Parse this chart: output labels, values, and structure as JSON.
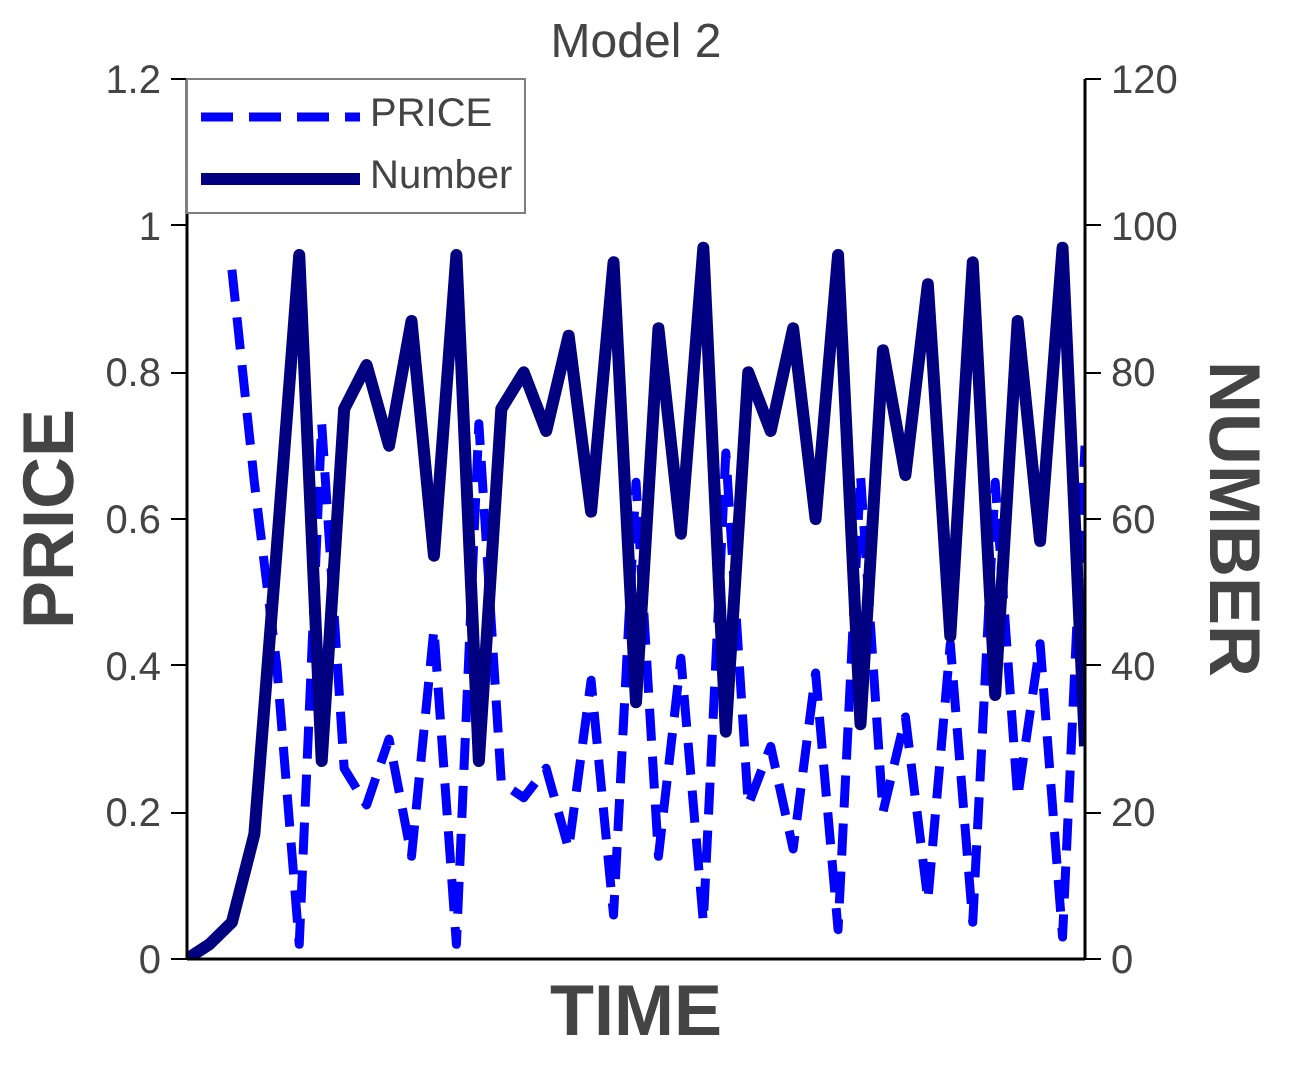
{
  "chart_data": {
    "type": "line",
    "title": "Model 2",
    "xlabel": "TIME",
    "ylabel": "PRICE",
    "y2label": "NUMBER",
    "categories": [
      null,
      null,
      null,
      null,
      null,
      null,
      null,
      null,
      null,
      null,
      null,
      null,
      null,
      null,
      null,
      null,
      null,
      null,
      null,
      null,
      null,
      null,
      null,
      null,
      null,
      null,
      null,
      null,
      null,
      null,
      null,
      null,
      null,
      null,
      null,
      null,
      null,
      null,
      null,
      null,
      null
    ],
    "series": [
      {
        "name": "PRICE",
        "color": "#0000ff",
        "line_style": "dashed",
        "values": [
          null,
          null,
          0.94,
          0.65,
          0.4,
          0.02,
          0.73,
          0.26,
          0.21,
          0.3,
          0.14,
          0.45,
          0.02,
          0.73,
          0.24,
          0.22,
          0.26,
          0.15,
          0.38,
          0.06,
          0.65,
          0.14,
          0.41,
          0.05,
          0.69,
          0.21,
          0.29,
          0.15,
          0.39,
          0.04,
          0.66,
          0.2,
          0.33,
          0.08,
          0.43,
          0.05,
          0.65,
          0.22,
          0.43,
          0.03,
          0.7
        ]
      },
      {
        "name": "Number",
        "color": "#000080",
        "line_style": "solid",
        "axis": "y2",
        "values": [
          0,
          2,
          5,
          17,
          56,
          96,
          27,
          75,
          81,
          70,
          87,
          55,
          96,
          27,
          75,
          80,
          72,
          85,
          61,
          95,
          35,
          86,
          58,
          97,
          31,
          80,
          72,
          86,
          60,
          96,
          32,
          83,
          66,
          92,
          44,
          95,
          36,
          87,
          57,
          97,
          29
        ]
      }
    ],
    "ylim": [
      0,
      1.2
    ],
    "yticks": [
      0,
      0.2,
      0.4,
      0.6,
      0.8,
      1,
      1.2
    ],
    "y2lim": [
      0,
      120
    ],
    "y2ticks": [
      0,
      20,
      40,
      60,
      80,
      100,
      120
    ],
    "grid": false,
    "legend": "top left"
  }
}
